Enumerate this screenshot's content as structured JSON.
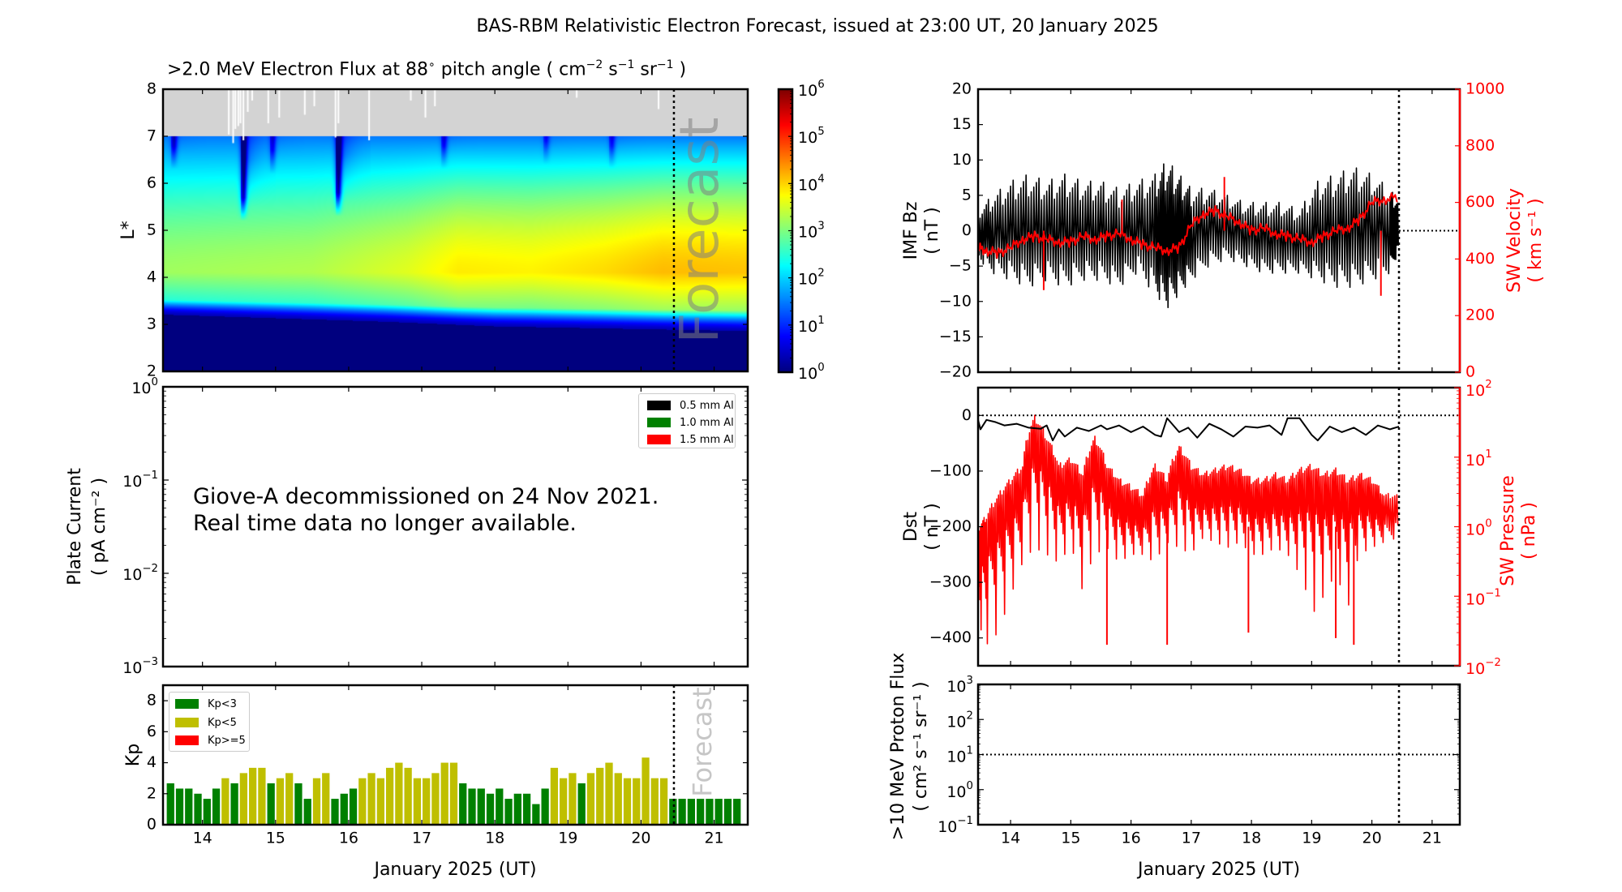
{
  "figure": {
    "title": "BAS-RBM Relativistic Electron Forecast, issued at 23:00 UT, 20 January 2025",
    "forecast_label": "Forecast",
    "forecast_label_kp": "Forecast",
    "xlabel": "January 2025 (UT)",
    "x_tick_labels": [
      "14",
      "15",
      "16",
      "17",
      "18",
      "19",
      "20",
      "21"
    ]
  },
  "chart_data": [
    {
      "id": "electron-flux",
      "type": "heatmap",
      "title": ">2.0 MeV Electron Flux at 88° pitch angle ( cm⁻² s⁻¹ sr⁻¹ )",
      "title_parts": {
        "main": ">2.0 MeV Electron Flux at 88",
        "deg": "∘",
        "mid": " pitch angle ( cm",
        "e1": "−2",
        "s": " s",
        "e2": "−1",
        "sr": " sr",
        "e3": "−1",
        "end": " )"
      },
      "xlabel": "January 2025 (UT)",
      "ylabel": "L*",
      "x_range_days": [
        13.46,
        21.46
      ],
      "ylim": [
        2,
        8
      ],
      "y_ticks": [
        "2",
        "3",
        "4",
        "5",
        "6",
        "7",
        "8"
      ],
      "no_data_above_L": 7,
      "no_data_color": "#d3d3d3",
      "forecast_start_day": 20.45,
      "colorbar": {
        "scale": "log",
        "range": [
          1,
          1000000
        ],
        "tick_labels": [
          {
            "base": "10",
            "exp": "0"
          },
          {
            "base": "10",
            "exp": "1"
          },
          {
            "base": "10",
            "exp": "2"
          },
          {
            "base": "10",
            "exp": "3"
          },
          {
            "base": "10",
            "exp": "4"
          },
          {
            "base": "10",
            "exp": "5"
          },
          {
            "base": "10",
            "exp": "6"
          }
        ],
        "colormap": "jet"
      },
      "flux_profile": {
        "inner_edge_L": [
          {
            "day": 13.46,
            "L": 3.2
          },
          {
            "day": 16.5,
            "L": 3.05
          },
          {
            "day": 18.0,
            "L": 2.95
          },
          {
            "day": 21.46,
            "L": 2.85
          }
        ],
        "peak_L": 4.1,
        "peak_log10_flux": [
          {
            "day": 13.46,
            "v": 3.2
          },
          {
            "day": 15.5,
            "v": 3.3
          },
          {
            "day": 16.8,
            "v": 3.6
          },
          {
            "day": 17.5,
            "v": 3.9
          },
          {
            "day": 18.5,
            "v": 3.85
          },
          {
            "day": 19.5,
            "v": 4.0
          },
          {
            "day": 20.3,
            "v": 4.2
          },
          {
            "day": 21.46,
            "v": 4.15
          }
        ],
        "outer_log10_flux_L7": 1.4,
        "dropouts": [
          {
            "day": 14.55,
            "depth": 2.2,
            "to_L": 5.2
          },
          {
            "day": 15.85,
            "depth": 2.3,
            "to_L": 5.3
          },
          {
            "day": 13.6,
            "depth": 1.2,
            "to_L": 6.3
          },
          {
            "day": 14.95,
            "depth": 1.0,
            "to_L": 6.2
          },
          {
            "day": 17.3,
            "depth": 1.0,
            "to_L": 6.3
          },
          {
            "day": 18.7,
            "depth": 0.8,
            "to_L": 6.4
          },
          {
            "day": 19.6,
            "depth": 0.9,
            "to_L": 6.3
          }
        ]
      },
      "missing_data_spikes_days": [
        14.36,
        14.42,
        14.45,
        14.49,
        14.52,
        14.56,
        14.62,
        14.68,
        14.9,
        15.05,
        15.4,
        15.53,
        15.82,
        15.86,
        16.28,
        16.85,
        17.05,
        17.18,
        19.12,
        20.24
      ]
    },
    {
      "id": "plate-current",
      "type": "line",
      "ylabel": "Plate Current",
      "ylabel_units": "( pA cm⁻² )",
      "yscale": "log",
      "ylim": [
        0.001,
        1
      ],
      "y_tick_labels": [
        {
          "base": "10",
          "exp": "0"
        },
        {
          "base": "10",
          "exp": "−1"
        },
        {
          "base": "10",
          "exp": "−2"
        },
        {
          "base": "10",
          "exp": "−3"
        }
      ],
      "legend": [
        {
          "label": "0.5 mm Al",
          "color": "#000000"
        },
        {
          "label": "1.0 mm Al",
          "color": "#008000"
        },
        {
          "label": "1.5 mm Al",
          "color": "#ff0000"
        }
      ],
      "legend_position": "upper-right",
      "annotation_lines": [
        "Giove-A decommissioned on 24 Nov 2021.",
        "Real time data no longer available."
      ],
      "series": []
    },
    {
      "id": "kp",
      "type": "bar",
      "ylabel": "Kp",
      "ylim": [
        0,
        9
      ],
      "y_ticks": [
        "0",
        "2",
        "4",
        "6",
        "8"
      ],
      "x_start_day": 13.5,
      "bin_hours": 3,
      "legend": [
        {
          "label": "Kp<3",
          "color": "#008000"
        },
        {
          "label": "Kp<5",
          "color": "#bfbf00"
        },
        {
          "label": "Kp>=5",
          "color": "#ff0000"
        }
      ],
      "legend_position": "upper-left",
      "values": [
        2.67,
        2.33,
        2.33,
        2.0,
        1.67,
        2.33,
        3.0,
        2.67,
        3.33,
        3.67,
        3.67,
        2.67,
        3.0,
        3.33,
        2.67,
        1.67,
        3.0,
        3.33,
        1.67,
        2.0,
        2.33,
        3.0,
        3.33,
        3.0,
        3.67,
        4.0,
        3.67,
        3.0,
        3.0,
        3.33,
        4.0,
        4.0,
        2.67,
        2.33,
        2.33,
        2.0,
        2.33,
        1.67,
        2.0,
        2.0,
        1.33,
        2.33,
        3.67,
        3.0,
        3.33,
        2.67,
        3.33,
        3.67,
        4.0,
        3.33,
        3.0,
        3.0,
        4.33,
        3.0,
        3.0
      ],
      "forecast_values": [
        1.67,
        1.67,
        1.67,
        1.67,
        1.67,
        1.67,
        1.67,
        1.67
      ]
    },
    {
      "id": "imf-bz-sw-velocity",
      "type": "line",
      "ylabel": "IMF Bz",
      "ylabel_units": "( nT )",
      "ylim": [
        -20,
        20
      ],
      "y_ticks": [
        "−20",
        "−15",
        "−10",
        "−5",
        "0",
        "5",
        "10",
        "15",
        "20"
      ],
      "y2label": "SW Velocity",
      "y2label_units": "( km s⁻¹ )",
      "y2lim": [
        0,
        1000
      ],
      "y2_ticks": [
        "0",
        "200",
        "400",
        "600",
        "800",
        "1000"
      ],
      "reference_line_after_forecast": {
        "axis": "y",
        "value": 0
      },
      "series": [
        {
          "name": "IMF Bz",
          "color": "#000000",
          "axis": "left",
          "envelope": true,
          "x": [
            13.46,
            13.7,
            14.0,
            14.3,
            14.6,
            14.9,
            15.2,
            15.5,
            15.8,
            16.1,
            16.4,
            16.6,
            16.8,
            17.0,
            17.3,
            17.6,
            17.9,
            18.2,
            18.5,
            18.8,
            19.1,
            19.4,
            19.7,
            20.0,
            20.3,
            20.45
          ],
          "max": [
            3,
            5,
            7,
            8,
            7,
            8,
            7,
            7,
            6,
            7,
            8,
            10,
            8,
            6,
            6,
            5,
            4,
            4,
            4,
            3,
            7,
            8,
            9,
            8,
            6,
            4
          ],
          "min": [
            -4,
            -6,
            -7,
            -8,
            -7,
            -8,
            -7,
            -7,
            -8,
            -6,
            -9,
            -11,
            -9,
            -7,
            -5,
            -4,
            -5,
            -6,
            -6,
            -6,
            -7,
            -8,
            -8,
            -7,
            -6,
            -3
          ]
        },
        {
          "name": "SW Velocity",
          "color": "#ff0000",
          "axis": "right",
          "x": [
            13.46,
            13.6,
            13.8,
            14.0,
            14.2,
            14.4,
            14.6,
            14.8,
            15.0,
            15.2,
            15.4,
            15.6,
            15.8,
            16.0,
            16.2,
            16.4,
            16.6,
            16.8,
            17.0,
            17.2,
            17.4,
            17.6,
            17.8,
            18.0,
            18.2,
            18.4,
            18.6,
            18.8,
            19.0,
            19.2,
            19.4,
            19.6,
            19.8,
            20.0,
            20.2,
            20.45
          ],
          "y": [
            440,
            430,
            420,
            440,
            470,
            480,
            470,
            460,
            460,
            480,
            470,
            480,
            490,
            470,
            450,
            440,
            430,
            440,
            520,
            560,
            570,
            550,
            530,
            500,
            510,
            490,
            480,
            470,
            460,
            480,
            500,
            510,
            540,
            600,
            610,
            620
          ],
          "spikes": [
            {
              "x": 14.55,
              "y": 290
            },
            {
              "x": 17.55,
              "y": 690
            },
            {
              "x": 15.85,
              "y": 610
            },
            {
              "x": 20.15,
              "y": 270
            }
          ]
        }
      ]
    },
    {
      "id": "dst-sw-pressure",
      "type": "line",
      "ylabel": "Dst",
      "ylabel_units": "( nT )",
      "ylim": [
        -450,
        50
      ],
      "y_ticks": [
        "−400",
        "−300",
        "−200",
        "−100",
        "0"
      ],
      "y2label": "SW Pressure",
      "y2label_units": "( nPa )",
      "y2scale": "log",
      "y2lim": [
        0.01,
        100
      ],
      "y2_tick_labels": [
        {
          "base": "10",
          "exp": "−2"
        },
        {
          "base": "10",
          "exp": "−1"
        },
        {
          "base": "10",
          "exp": "0"
        },
        {
          "base": "10",
          "exp": "1"
        },
        {
          "base": "10",
          "exp": "2"
        }
      ],
      "reference_line": {
        "axis": "y",
        "value": 0
      },
      "series": [
        {
          "name": "Dst",
          "color": "#000000",
          "axis": "left",
          "x": [
            13.46,
            13.5,
            13.6,
            13.75,
            13.9,
            14.1,
            14.3,
            14.5,
            14.6,
            14.7,
            14.8,
            14.9,
            15.1,
            15.3,
            15.5,
            15.6,
            15.8,
            16.0,
            16.2,
            16.4,
            16.5,
            16.6,
            16.8,
            16.95,
            17.1,
            17.3,
            17.5,
            17.7,
            17.9,
            18.1,
            18.3,
            18.5,
            18.6,
            18.8,
            19.0,
            19.1,
            19.3,
            19.5,
            19.7,
            19.9,
            20.1,
            20.3,
            20.45
          ],
          "y": [
            -8,
            -25,
            -8,
            -12,
            -18,
            -15,
            -22,
            -24,
            -18,
            -45,
            -25,
            -38,
            -22,
            -28,
            -18,
            -25,
            -18,
            -30,
            -20,
            -35,
            -38,
            -5,
            -30,
            -22,
            -40,
            -15,
            -25,
            -38,
            -20,
            -22,
            -18,
            -35,
            -5,
            -5,
            -35,
            -45,
            -20,
            -30,
            -22,
            -35,
            -18,
            -25,
            -20
          ]
        },
        {
          "name": "SW Pressure",
          "color": "#ff0000",
          "axis": "right",
          "envelope": true,
          "x": [
            13.46,
            13.6,
            13.8,
            14.0,
            14.2,
            14.4,
            14.6,
            14.8,
            15.0,
            15.2,
            15.4,
            15.6,
            15.8,
            16.0,
            16.2,
            16.4,
            16.6,
            16.8,
            17.0,
            17.2,
            17.4,
            17.6,
            17.8,
            18.0,
            18.2,
            18.4,
            18.6,
            18.8,
            19.0,
            19.2,
            19.4,
            19.6,
            19.8,
            20.0,
            20.2,
            20.45
          ],
          "max": [
            1.0,
            1.5,
            3.0,
            5.0,
            8.0,
            40,
            20,
            8,
            10,
            6,
            20,
            8,
            5,
            4,
            3,
            8,
            5,
            15,
            8,
            6,
            7,
            8,
            7,
            5,
            5,
            6,
            5,
            7,
            8,
            6,
            7,
            5,
            6,
            5,
            3,
            3
          ],
          "min": [
            0.04,
            0.02,
            0.03,
            0.08,
            0.3,
            0.5,
            0.4,
            0.3,
            0.5,
            0.1,
            0.4,
            0.5,
            0.3,
            0.4,
            0.4,
            0.3,
            0.6,
            0.5,
            0.4,
            0.7,
            0.6,
            0.5,
            0.6,
            0.4,
            0.4,
            0.5,
            0.4,
            0.2,
            0.05,
            0.1,
            0.2,
            0.05,
            0.4,
            0.5,
            0.6,
            0.7
          ],
          "spikes": [
            {
              "x": 15.6,
              "y": 0.02
            },
            {
              "x": 16.6,
              "y": 0.02
            },
            {
              "x": 17.95,
              "y": 0.03
            },
            {
              "x": 19.4,
              "y": 0.025
            },
            {
              "x": 19.7,
              "y": 0.02
            }
          ]
        }
      ]
    },
    {
      "id": "proton-flux",
      "type": "line",
      "ylabel": ">10 MeV Proton Flux",
      "ylabel_units": "( cm² s⁻¹ sr⁻¹ )",
      "yscale": "log",
      "ylim": [
        0.1,
        1000
      ],
      "y_tick_labels": [
        {
          "base": "10",
          "exp": "3"
        },
        {
          "base": "10",
          "exp": "2"
        },
        {
          "base": "10",
          "exp": "1"
        },
        {
          "base": "10",
          "exp": "0"
        },
        {
          "base": "10",
          "exp": "−1"
        }
      ],
      "reference_line": {
        "axis": "y",
        "value": 10
      },
      "xlabel": "January 2025 (UT)",
      "series": []
    }
  ]
}
